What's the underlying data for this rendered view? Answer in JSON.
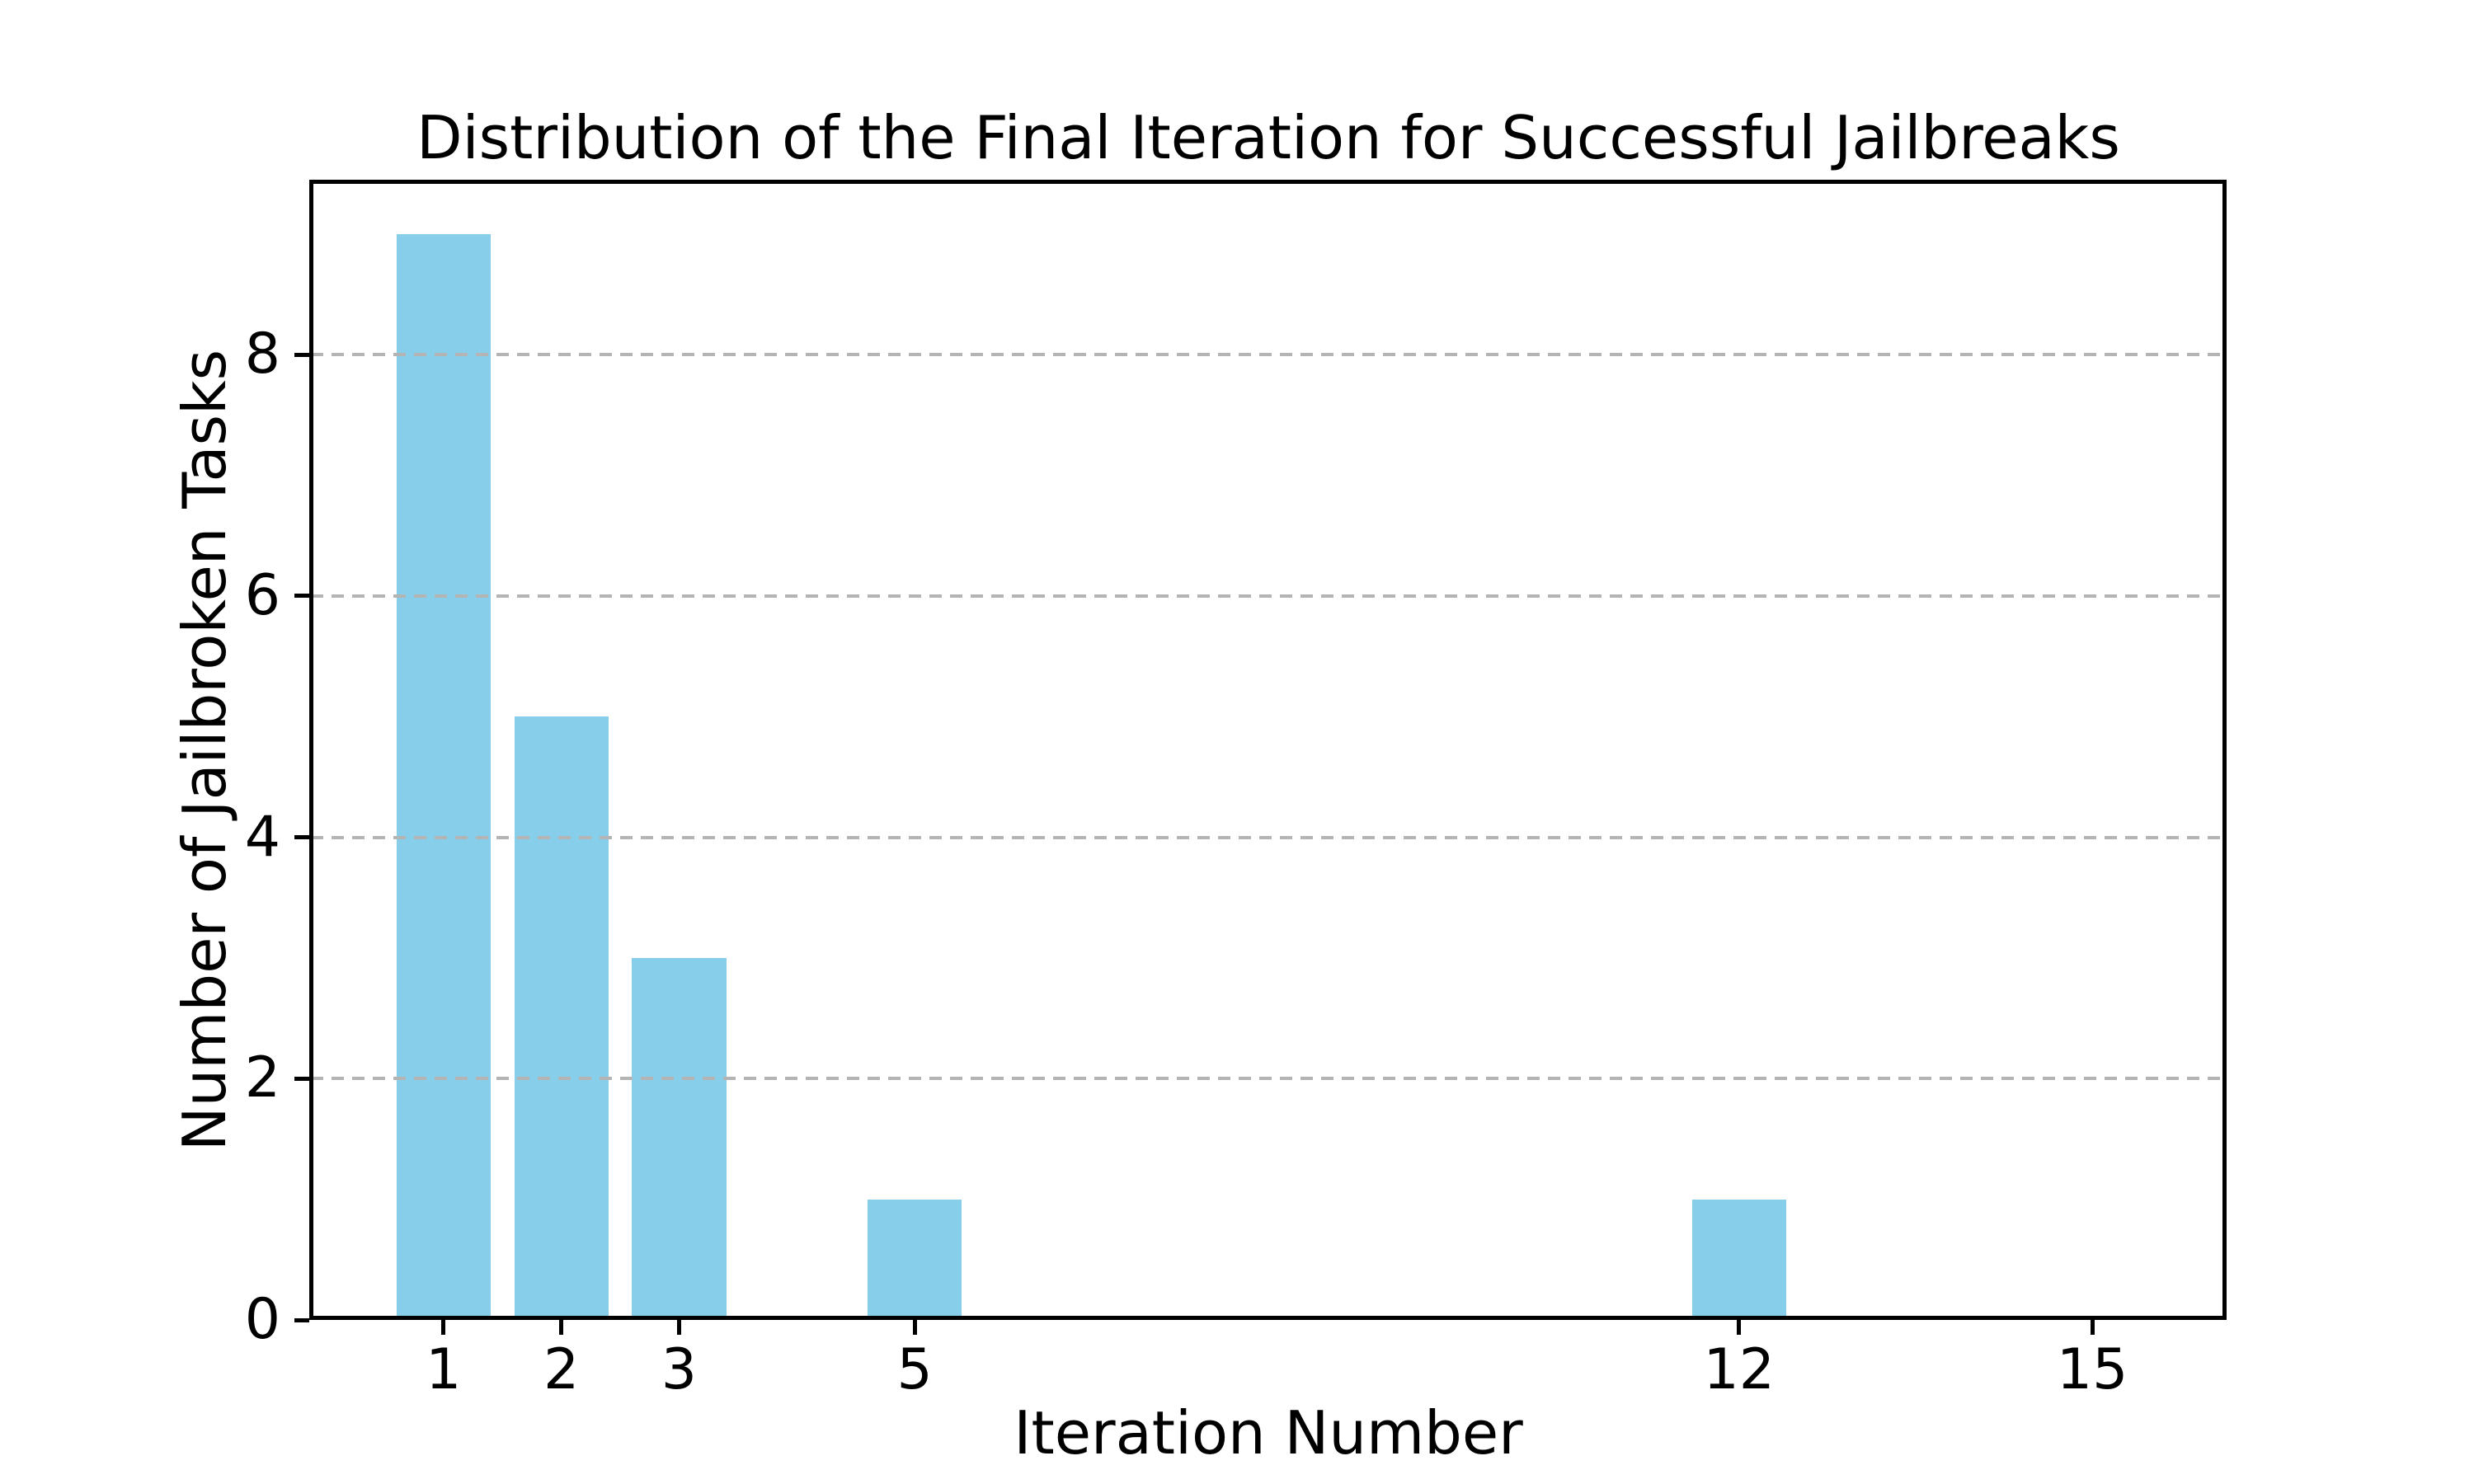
{
  "chart_data": {
    "type": "bar",
    "title": "Distribution of the Final Iteration for Successful Jailbreaks",
    "xlabel": "Iteration Number",
    "ylabel": "Number of Jailbroken Tasks",
    "x": [
      1,
      2,
      3,
      5,
      12
    ],
    "values": [
      9,
      5,
      3,
      1,
      1
    ],
    "xtick_labels": [
      "1",
      "2",
      "3",
      "5",
      "12",
      "15"
    ],
    "xtick_positions": [
      1,
      2,
      3,
      5,
      12,
      15
    ],
    "ytick_labels": [
      "0",
      "2",
      "4",
      "6",
      "8"
    ],
    "ytick_positions": [
      0,
      2,
      4,
      6,
      8
    ],
    "xlim": [
      -0.14,
      16.14
    ],
    "ylim": [
      0,
      9.45
    ],
    "bar_width": 0.8,
    "bar_color": "#87CEEB",
    "grid": "horizontal-dashed",
    "grid_color": "#b4b4b4",
    "axis_color": "#000000",
    "text_color": "#000000",
    "background_color": "#ffffff",
    "legend": "none"
  }
}
